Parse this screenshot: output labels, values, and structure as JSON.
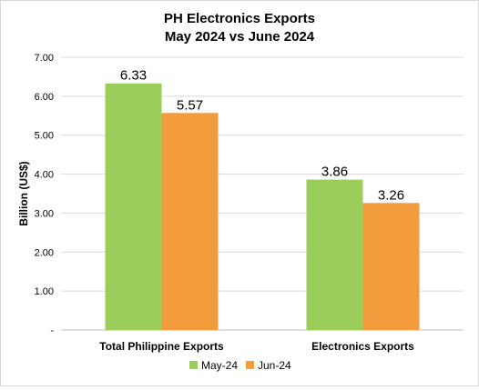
{
  "chart_data": {
    "type": "bar",
    "title_lines": [
      "PH Electronics Exports",
      "May 2024 vs June 2024"
    ],
    "ylabel": "Billion (US$)",
    "xlabel": "",
    "categories": [
      "Total Philippine Exports",
      "Electronics Exports"
    ],
    "series": [
      {
        "name": "May-24",
        "values": [
          6.33,
          3.86
        ],
        "color": "#9ACD5A"
      },
      {
        "name": "Jun-24",
        "values": [
          5.57,
          3.26
        ],
        "color": "#F39C3E"
      }
    ],
    "ylim": [
      0,
      7
    ],
    "yticks": [
      0,
      1,
      2,
      3,
      4,
      5,
      6,
      7
    ],
    "ytick_labels": [
      "-",
      "1.00",
      "2.00",
      "3.00",
      "4.00",
      "5.00",
      "6.00",
      "7.00"
    ],
    "data_labels": [
      [
        "6.33",
        "3.86"
      ],
      [
        "5.57",
        "3.26"
      ]
    ],
    "grid": true,
    "legend_position": "bottom"
  }
}
